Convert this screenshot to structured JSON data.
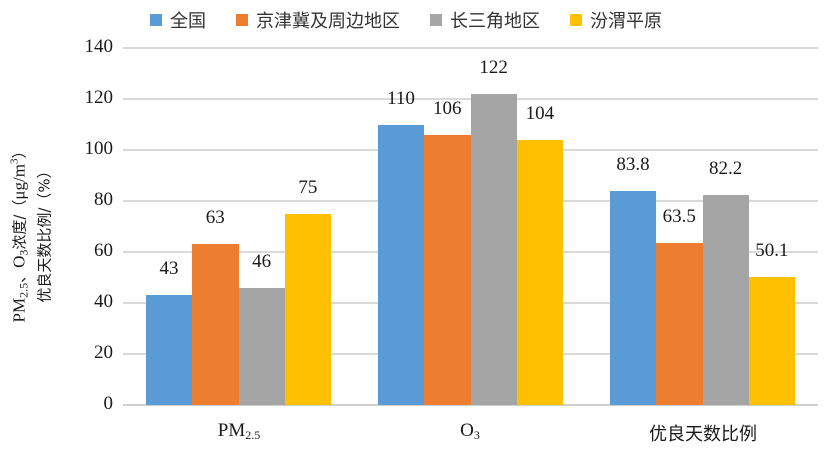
{
  "chart_data": {
    "type": "bar",
    "title": "",
    "categories": [
      "PM2.5",
      "O3",
      "优良天数比例"
    ],
    "category_labels": [
      {
        "main": "PM",
        "sub": "2.5"
      },
      {
        "main": "O",
        "sub": "3"
      },
      {
        "main": "优良天数比例",
        "sub": ""
      }
    ],
    "series": [
      {
        "name": "全国",
        "color": "#5B9BD5",
        "values": [
          43,
          110,
          83.8
        ],
        "labels": [
          "43",
          "110",
          "83.8"
        ]
      },
      {
        "name": "京津冀及周边地区",
        "color": "#ED7D31",
        "values": [
          63,
          106,
          63.5
        ],
        "labels": [
          "63",
          "106",
          "63.5"
        ]
      },
      {
        "name": "长三角地区",
        "color": "#A5A5A5",
        "values": [
          46,
          122,
          82.2
        ],
        "labels": [
          "46",
          "122",
          "82.2"
        ]
      },
      {
        "name": "汾渭平原",
        "color": "#FFC000",
        "values": [
          75,
          104,
          50.1
        ],
        "labels": [
          "75",
          "104",
          "50.1"
        ]
      }
    ],
    "xlabel": "",
    "ylabel": "PM2.5、O3浓度/（μg/m³）优良天数比例/（%）",
    "ylabel_parts": {
      "line1_pm": "PM",
      "line1_pm_sub": "2.5",
      "line1_sep": "、",
      "line1_o": "O",
      "line1_o_sub": "3",
      "line1_cjk": "浓度/（",
      "line1_unit": "μg/m",
      "line1_unit_sup": "3",
      "line1_close": "）",
      "line2": "优良天数比例/（%）"
    },
    "ylim": [
      0,
      140
    ],
    "yticks": [
      "0",
      "20",
      "40",
      "60",
      "80",
      "100",
      "120",
      "140"
    ],
    "grid": true,
    "legend_position": "top"
  }
}
